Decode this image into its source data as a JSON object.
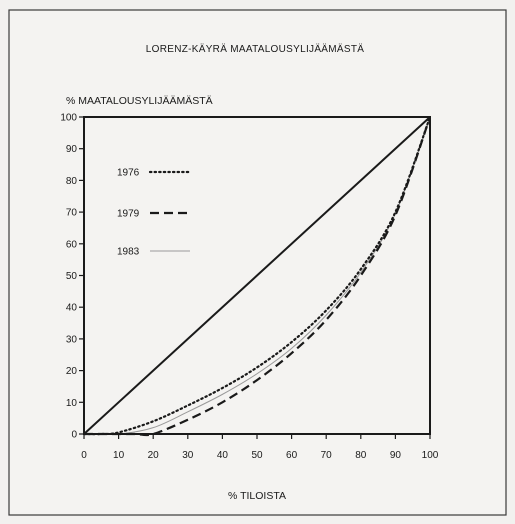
{
  "chart_data": {
    "type": "line",
    "title": "LORENZ-KÄYRÄ MAATALOUSYLIJÄÄMÄSTÄ",
    "xlabel": "% TILOISTA",
    "ylabel": "% MAATALOUSYLIJÄÄMÄSTÄ",
    "xlim": [
      0,
      100
    ],
    "ylim": [
      0,
      100
    ],
    "x_ticks": [
      "0",
      "10",
      "20",
      "30",
      "40",
      "50",
      "60",
      "70",
      "80",
      "90",
      "100"
    ],
    "y_ticks": [
      "0",
      "10",
      "20",
      "30",
      "40",
      "50",
      "60",
      "70",
      "80",
      "90",
      "100"
    ],
    "grid": false,
    "legend_position": "upper-left",
    "series": [
      {
        "name": "1976",
        "style": "dotted",
        "color": "#1a1a1a",
        "x": [
          0,
          5,
          10,
          20,
          30,
          40,
          50,
          60,
          70,
          80,
          90,
          100
        ],
        "y": [
          0,
          0,
          0.5,
          4,
          9,
          14.5,
          21,
          29,
          39,
          52,
          70,
          100
        ]
      },
      {
        "name": "1979",
        "style": "dashed",
        "color": "#1a1a1a",
        "x": [
          0,
          10,
          15,
          20,
          30,
          40,
          50,
          60,
          70,
          80,
          90,
          100
        ],
        "y": [
          0,
          0,
          0,
          0,
          4.5,
          10,
          17,
          25.5,
          36,
          50,
          69,
          100
        ]
      },
      {
        "name": "1983",
        "style": "solid-thin",
        "color": "#9a9a9a",
        "x": [
          0,
          10,
          20,
          30,
          40,
          50,
          60,
          70,
          80,
          90,
          100
        ],
        "y": [
          0,
          0,
          2,
          7,
          12.5,
          19,
          27,
          37.5,
          51,
          69.5,
          100
        ]
      },
      {
        "name": "",
        "style": "solid-thick",
        "color": "#1a1a1a",
        "x": [
          0,
          100
        ],
        "y": [
          0,
          100
        ]
      }
    ]
  }
}
